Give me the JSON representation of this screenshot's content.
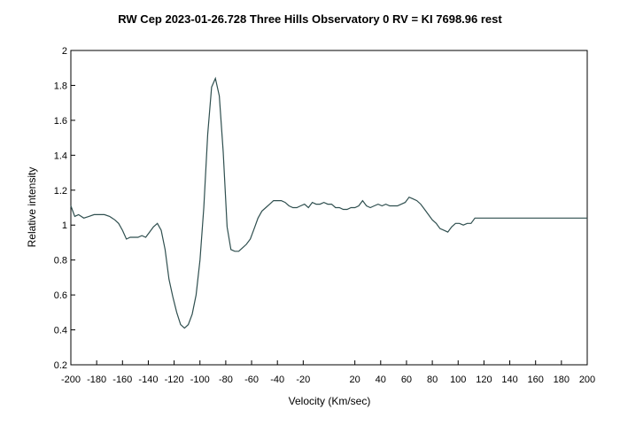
{
  "chart_data": {
    "type": "line",
    "title": "RW Cep   2023-01-26.728 Three Hills Observatory   0 RV = KI 7698.96 rest",
    "xlabel": "Velocity (Km/sec)",
    "ylabel": "Relative intensity",
    "xlim": [
      -200,
      200
    ],
    "ylim": [
      0.2,
      2.0
    ],
    "xticks": [
      "-200",
      "-180",
      "-160",
      "-140",
      "-120",
      "-100",
      "-80",
      "-60",
      "-40",
      "-20",
      "20",
      "40",
      "60",
      "80",
      "100",
      "120",
      "140",
      "160",
      "180",
      "200"
    ],
    "yticks": [
      "0.2",
      "0.4",
      "0.6",
      "0.8",
      "1",
      "1.2",
      "1.4",
      "1.6",
      "1.8",
      "2"
    ],
    "line_color": "#2f4f4f",
    "series": [
      {
        "x": [
          -200,
          -197,
          -194,
          -190,
          -186,
          -182,
          -178,
          -174,
          -170,
          -166,
          -163,
          -160,
          -157,
          -154,
          -151,
          -148,
          -145,
          -142,
          -139,
          -136,
          -133,
          -130,
          -127,
          -124,
          -121,
          -118,
          -115,
          -112,
          -109,
          -106,
          -103,
          -100,
          -97,
          -94,
          -91,
          -88,
          -85,
          -82,
          -79,
          -76,
          -73,
          -70,
          -67,
          -64,
          -61,
          -58,
          -55,
          -52,
          -49,
          -46,
          -43,
          -40,
          -37,
          -34,
          -31,
          -28,
          -25,
          -22,
          -19,
          -16,
          -13,
          -10,
          -7,
          -4,
          -1,
          2,
          5,
          8,
          11,
          14,
          17,
          20,
          23,
          26,
          29,
          32,
          35,
          38,
          41,
          44,
          47,
          50,
          53,
          56,
          59,
          62,
          65,
          68,
          71,
          74,
          77,
          80,
          83,
          86,
          89,
          92,
          95,
          98,
          101,
          104,
          107,
          110,
          113,
          116,
          119,
          122,
          125,
          128,
          131,
          134,
          137,
          140,
          143,
          146,
          149,
          152,
          155,
          158,
          161,
          164,
          167,
          170,
          173,
          176,
          179,
          182,
          185,
          188,
          191,
          194,
          197,
          200
        ],
        "y": [
          1.11,
          1.05,
          1.06,
          1.04,
          1.05,
          1.06,
          1.06,
          1.06,
          1.05,
          1.03,
          1.01,
          0.97,
          0.92,
          0.93,
          0.93,
          0.93,
          0.94,
          0.93,
          0.96,
          0.99,
          1.01,
          0.97,
          0.86,
          0.69,
          0.59,
          0.5,
          0.43,
          0.41,
          0.43,
          0.49,
          0.6,
          0.8,
          1.1,
          1.52,
          1.79,
          1.84,
          1.74,
          1.42,
          0.99,
          0.86,
          0.85,
          0.85,
          0.87,
          0.89,
          0.92,
          0.98,
          1.04,
          1.08,
          1.1,
          1.12,
          1.14,
          1.14,
          1.14,
          1.13,
          1.11,
          1.1,
          1.1,
          1.11,
          1.12,
          1.1,
          1.13,
          1.12,
          1.12,
          1.13,
          1.12,
          1.12,
          1.1,
          1.1,
          1.09,
          1.09,
          1.1,
          1.1,
          1.11,
          1.14,
          1.11,
          1.1,
          1.11,
          1.12,
          1.11,
          1.12,
          1.11,
          1.11,
          1.11,
          1.12,
          1.13,
          1.16,
          1.15,
          1.14,
          1.12,
          1.09,
          1.06,
          1.03,
          1.01,
          0.98,
          0.97,
          0.96,
          0.99,
          1.01,
          1.01,
          1.0,
          1.01,
          1.01,
          1.04,
          1.04,
          1.04,
          1.04,
          1.04,
          1.04,
          1.04,
          1.04,
          1.04,
          1.04,
          1.04,
          1.04,
          1.04,
          1.04,
          1.04,
          1.04,
          1.04,
          1.04,
          1.04,
          1.04,
          1.04,
          1.04,
          1.04,
          1.04,
          1.04,
          1.04,
          1.04,
          1.04,
          1.04,
          1.04
        ]
      }
    ]
  }
}
